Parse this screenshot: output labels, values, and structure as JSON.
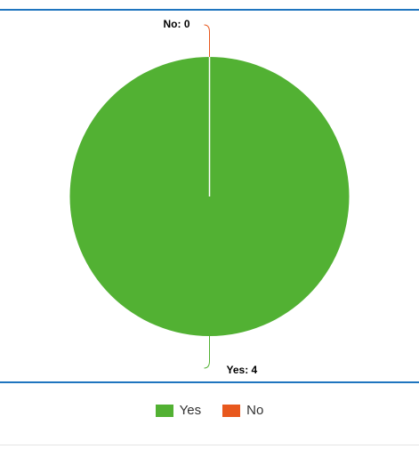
{
  "chart_data": {
    "type": "pie",
    "categories": [
      "Yes",
      "No"
    ],
    "values": [
      4,
      0
    ],
    "colors": [
      "#52b133",
      "#e8581d"
    ],
    "data_labels": [
      "Yes: 4",
      "No: 0"
    ],
    "legend_position": "bottom"
  }
}
